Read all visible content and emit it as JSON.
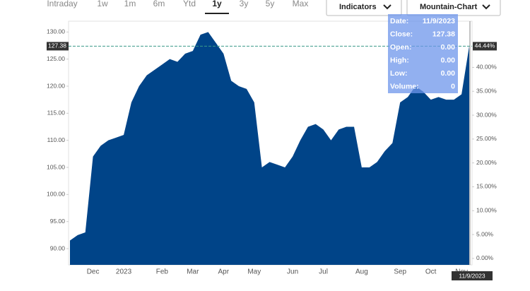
{
  "toolbar": {
    "ranges": [
      "Intraday",
      "1w",
      "1m",
      "6m",
      "Ytd",
      "1y",
      "3y",
      "5y",
      "Max"
    ],
    "selected": 5,
    "indicators": "Indicators",
    "chart_type": "Mountain-Chart"
  },
  "tooltip": {
    "rows": [
      [
        "Date:",
        "11/9/2023"
      ],
      [
        "Close:",
        "127.38"
      ],
      [
        "Open:",
        "0.00"
      ],
      [
        "High:",
        "0.00"
      ],
      [
        "Low:",
        "0.00"
      ],
      [
        "Volume:",
        "0"
      ]
    ]
  },
  "chart_data": {
    "type": "area",
    "color": "#004488",
    "categories": [
      null,
      null,
      null,
      "Dec",
      null,
      null,
      null,
      "2023",
      null,
      null,
      null,
      null,
      "Feb",
      null,
      null,
      null,
      "Mar",
      null,
      null,
      null,
      "Apr",
      null,
      null,
      null,
      "May",
      null,
      null,
      null,
      null,
      "Jun",
      null,
      null,
      null,
      "Jul",
      null,
      null,
      null,
      null,
      "Aug",
      null,
      null,
      null,
      null,
      "Sep",
      null,
      null,
      null,
      "Oct",
      null,
      null,
      null,
      "Nov",
      null
    ],
    "values": [
      91.5,
      92.5,
      93,
      107,
      109,
      110,
      110.5,
      111,
      117,
      120,
      122,
      123,
      124,
      125,
      124.5,
      126,
      126.5,
      129.5,
      130,
      128,
      126,
      121,
      120,
      119.5,
      117,
      105,
      106,
      105.5,
      105,
      107,
      110,
      112.5,
      113,
      112,
      110,
      112,
      112.5,
      112.5,
      105,
      105,
      106,
      108,
      109.5,
      117,
      118,
      120,
      119,
      117.5,
      118,
      117.5,
      117.5,
      118.5,
      127.38
    ],
    "ylim": [
      87,
      132
    ],
    "yticks": [
      {
        "value": 90,
        "label": "90.00"
      },
      {
        "value": 95,
        "label": "95.00"
      },
      {
        "value": 100,
        "label": "100.00"
      },
      {
        "value": 105,
        "label": "105.00"
      },
      {
        "value": 110,
        "label": "110.00"
      },
      {
        "value": 115,
        "label": "115.00"
      },
      {
        "value": 120,
        "label": "120.00"
      },
      {
        "value": 125,
        "label": "125.00"
      },
      {
        "value": 130,
        "label": "130.00"
      }
    ],
    "y2lim": [
      -1.35,
      49.68
    ],
    "y2ticks": [
      {
        "value": 0,
        "label": "0.00%"
      },
      {
        "value": 5,
        "label": "5.00%"
      },
      {
        "value": 10,
        "label": "10.00%"
      },
      {
        "value": 15,
        "label": "15.00%"
      },
      {
        "value": 20,
        "label": "20.00%"
      },
      {
        "value": 25,
        "label": "25.00%"
      },
      {
        "value": 30,
        "label": "30.00%"
      },
      {
        "value": 35,
        "label": "35.00%"
      },
      {
        "value": 40,
        "label": "40.00%"
      }
    ],
    "last_price_label": "127.38",
    "last_change": {
      "value": 44.44,
      "label": "44.44%"
    },
    "crosshair_date": "11/9/2023"
  }
}
